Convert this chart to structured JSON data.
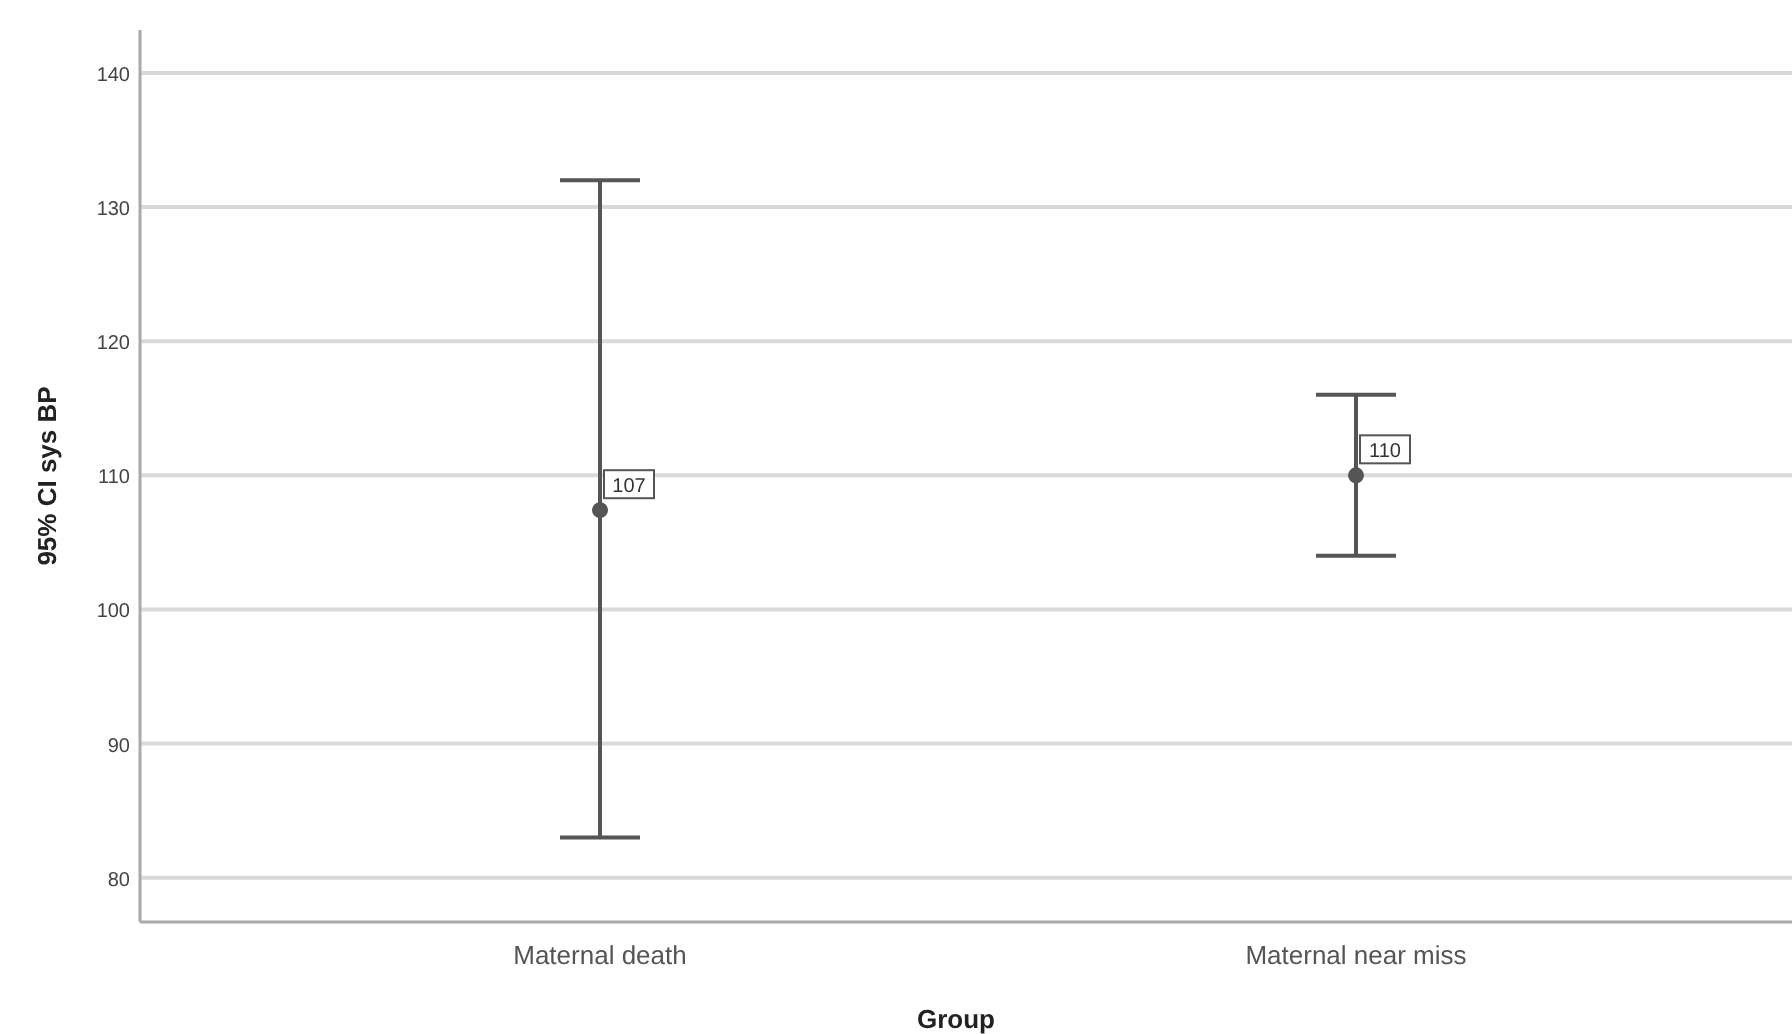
{
  "chart_data": {
    "type": "scatter",
    "xlabel": "Group",
    "ylabel": "95% CI sys BP",
    "categories": [
      "Maternal death",
      "Maternal near miss"
    ],
    "values": [
      107.4,
      110
    ],
    "errors": [
      [
        83,
        132
      ],
      [
        104,
        116
      ]
    ],
    "value_labels": [
      "107",
      "110"
    ],
    "color": "#555555",
    "marker": "circle",
    "ylim": [
      76.7,
      143.2
    ],
    "yticks": [
      80,
      90,
      100,
      110,
      120,
      130,
      140
    ],
    "grid": "y"
  }
}
